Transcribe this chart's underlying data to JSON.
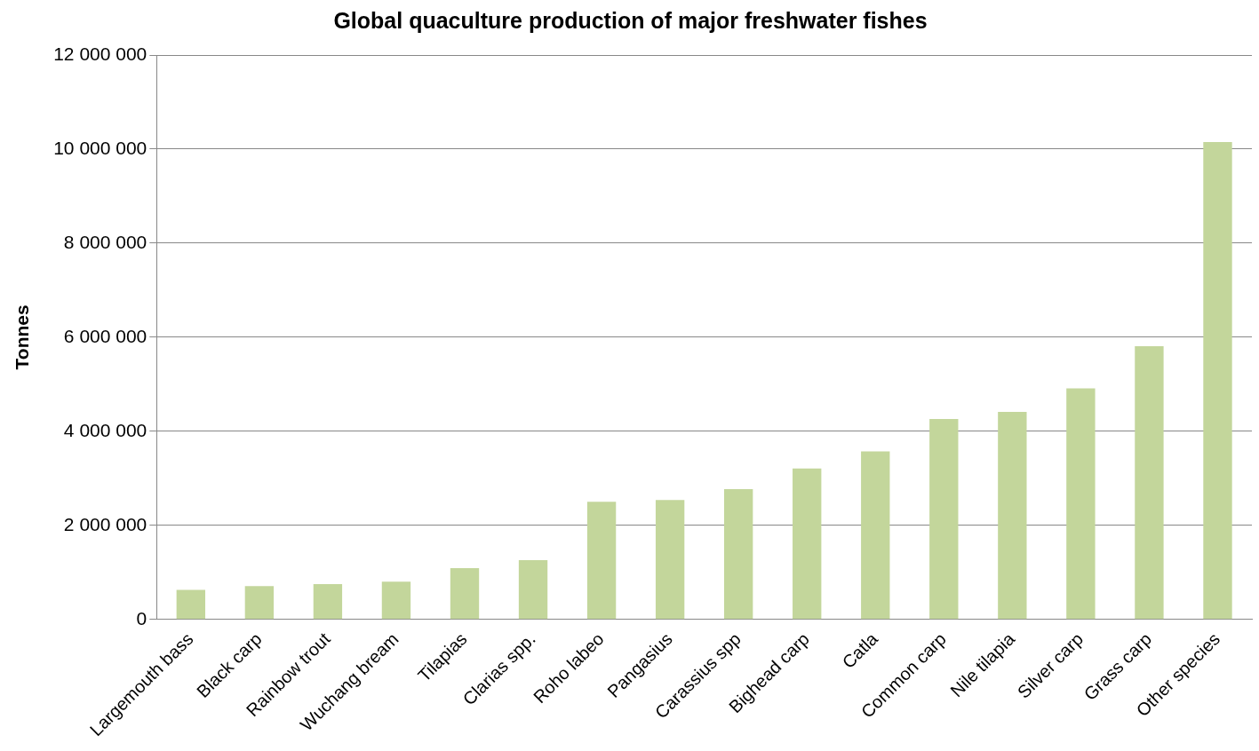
{
  "chart_data": {
    "type": "bar",
    "title": "Global quaculture production of major freshwater fishes",
    "ylabel": "Tonnes",
    "categories": [
      "Largemouth bass",
      "Black carp",
      "Rainbow trout",
      "Wuchang bream",
      "Tilapias",
      "Clarias spp.",
      "Roho labeo",
      "Pangasius",
      "Carassius spp",
      "Bighead carp",
      "Catla",
      "Common carp",
      "Nile tilapia",
      "Silver carp",
      "Grass carp",
      "Other species"
    ],
    "values": [
      630000,
      710000,
      750000,
      800000,
      1090000,
      1260000,
      2500000,
      2540000,
      2770000,
      3210000,
      3570000,
      4260000,
      4410000,
      4910000,
      5810000,
      10150000
    ],
    "color": "#c3d69b",
    "ylim": [
      0,
      12000000
    ],
    "yticks": [
      {
        "value": 0,
        "label": "0"
      },
      {
        "value": 2000000,
        "label": "2 000 000"
      },
      {
        "value": 4000000,
        "label": "4 000 000"
      },
      {
        "value": 6000000,
        "label": "6 000 000"
      },
      {
        "value": 8000000,
        "label": "8 000 000"
      },
      {
        "value": 10000000,
        "label": "10 000 000"
      },
      {
        "value": 12000000,
        "label": "12 000 000"
      }
    ],
    "grid": "y",
    "legend": false
  }
}
